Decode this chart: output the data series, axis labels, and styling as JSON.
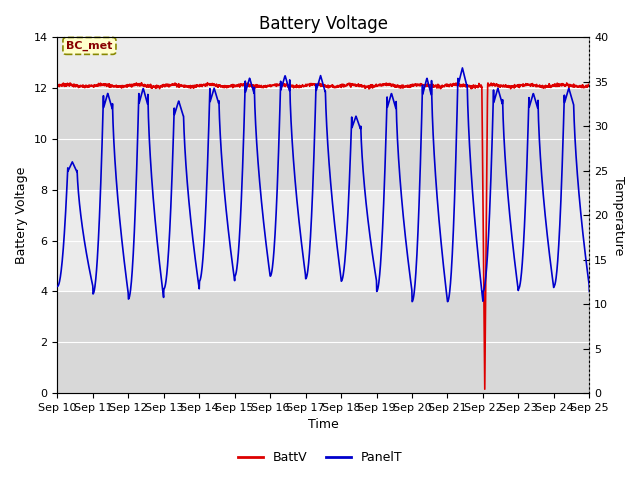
{
  "title": "Battery Voltage",
  "xlabel": "Time",
  "ylabel_left": "Battery Voltage",
  "ylabel_right": "Temperature",
  "xlim_start": 0,
  "xlim_end": 15,
  "ylim_left": [
    0,
    14
  ],
  "ylim_right": [
    0,
    40
  ],
  "yticks_left": [
    0,
    2,
    4,
    6,
    8,
    10,
    12,
    14
  ],
  "yticks_right": [
    0,
    5,
    10,
    15,
    20,
    25,
    30,
    35,
    40
  ],
  "xtick_labels": [
    "Sep 10",
    "Sep 11",
    "Sep 12",
    "Sep 13",
    "Sep 14",
    "Sep 15",
    "Sep 16",
    "Sep 17",
    "Sep 18",
    "Sep 19",
    "Sep 20",
    "Sep 21",
    "Sep 22",
    "Sep 23",
    "Sep 24",
    "Sep 25"
  ],
  "legend_labels": [
    "BattV",
    "PanelT"
  ],
  "legend_colors": [
    "#dd0000",
    "#0000cc"
  ],
  "batt_color": "#dd0000",
  "panel_color": "#0000cc",
  "bg_color": "#ffffff",
  "band_dark": "#d8d8d8",
  "band_light": "#ebebeb",
  "label_box_facecolor": "#ffffcc",
  "label_box_edgecolor": "#888800",
  "label_text_color": "#880000",
  "label_text": "BC_met",
  "grid_color": "#cccccc",
  "title_fontsize": 12,
  "axis_label_fontsize": 9,
  "tick_fontsize": 8,
  "legend_fontsize": 9
}
